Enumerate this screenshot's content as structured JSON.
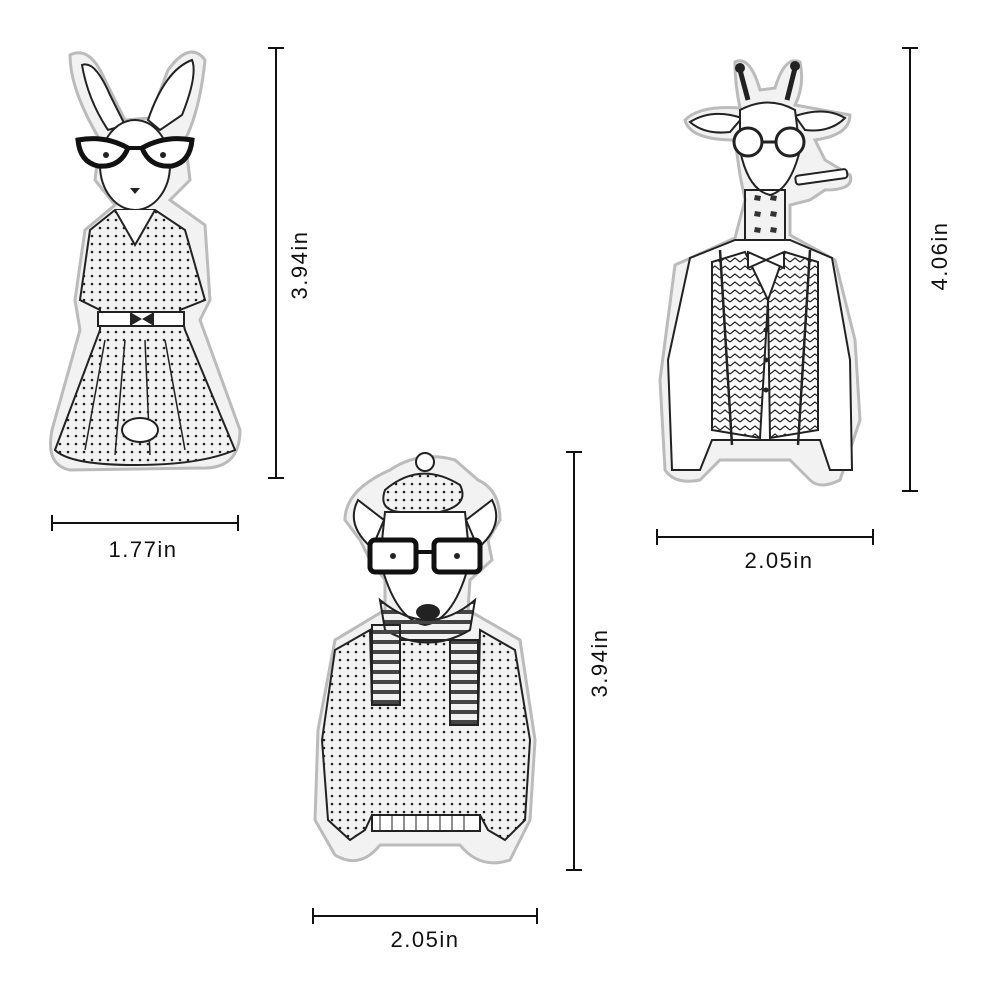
{
  "image": {
    "subject": "Clear stamp set: hipster animals"
  },
  "stamps": [
    {
      "name": "rabbit",
      "height": "3.94in",
      "width": "1.77in"
    },
    {
      "name": "giraffe",
      "height": "4.06in",
      "width": "2.05in"
    },
    {
      "name": "dog",
      "height": "3.94in",
      "width": "2.05in"
    }
  ],
  "colors": {
    "background": "#ffffff",
    "ink": "#111111",
    "stamp_fill": "#eeeeee"
  }
}
